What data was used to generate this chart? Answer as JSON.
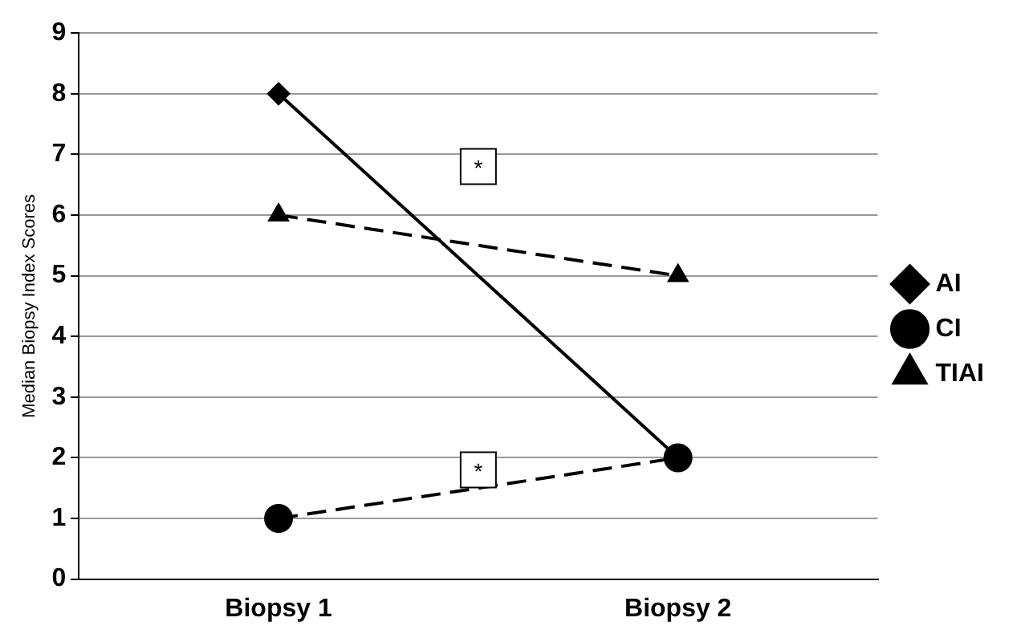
{
  "chart_data": {
    "type": "line",
    "ylabel": "Median Biopsy Index Scores",
    "categories": [
      "Biopsy 1",
      "Biopsy 2"
    ],
    "series": [
      {
        "name": "AI",
        "color": "#000000",
        "values": [
          8,
          2
        ],
        "marker": "diamond",
        "line_style": "solid"
      },
      {
        "name": "CI",
        "color": "#000000",
        "values": [
          1,
          2
        ],
        "marker": "circle",
        "line_style": "dashed"
      },
      {
        "name": "TIAI",
        "color": "#000000",
        "values": [
          6,
          5
        ],
        "marker": "triangle",
        "line_style": "dashed"
      }
    ],
    "ylim": [
      0,
      9
    ],
    "yticks": [
      0,
      1,
      2,
      3,
      4,
      5,
      6,
      7,
      8,
      9
    ],
    "grid": "y",
    "legend": "right",
    "annotations": [
      {
        "text": "*",
        "y": 6.8
      },
      {
        "text": "*",
        "y": 1.8
      }
    ]
  }
}
